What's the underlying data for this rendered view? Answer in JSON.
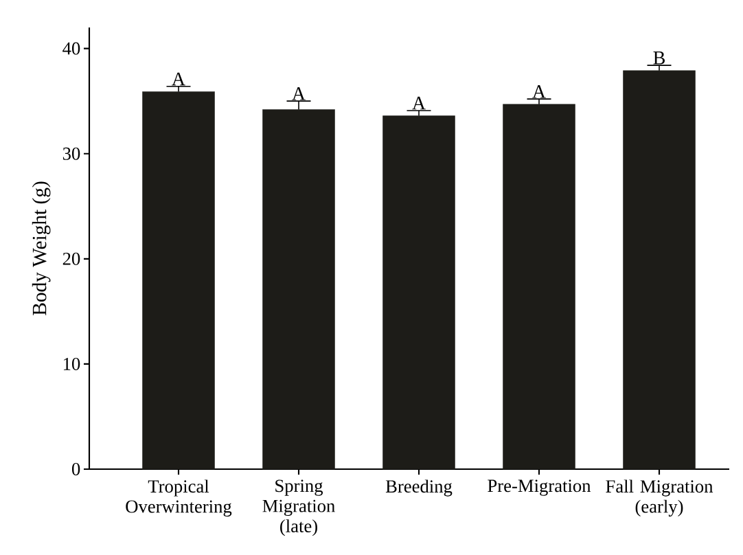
{
  "chart_data": {
    "type": "bar",
    "ylabel": "Body Weight (g)",
    "categories": [
      "Tropical Overwintering",
      "Spring Migration (late)",
      "Breeding",
      "Pre-Migration",
      "Fall Migration (early)"
    ],
    "values": [
      35.9,
      34.2,
      33.6,
      34.7,
      37.9
    ],
    "errors": [
      [
        35.9,
        36.4
      ],
      [
        34.2,
        35.0
      ],
      [
        33.6,
        34.1
      ],
      [
        34.7,
        35.2
      ],
      [
        37.9,
        38.4
      ]
    ],
    "color": "#1d1c18",
    "ylim": [
      0,
      42
    ],
    "yticks": [
      0,
      10,
      20,
      30,
      40
    ],
    "annotations": [
      "A",
      "A",
      "A",
      "A",
      "B"
    ],
    "grid": false
  }
}
